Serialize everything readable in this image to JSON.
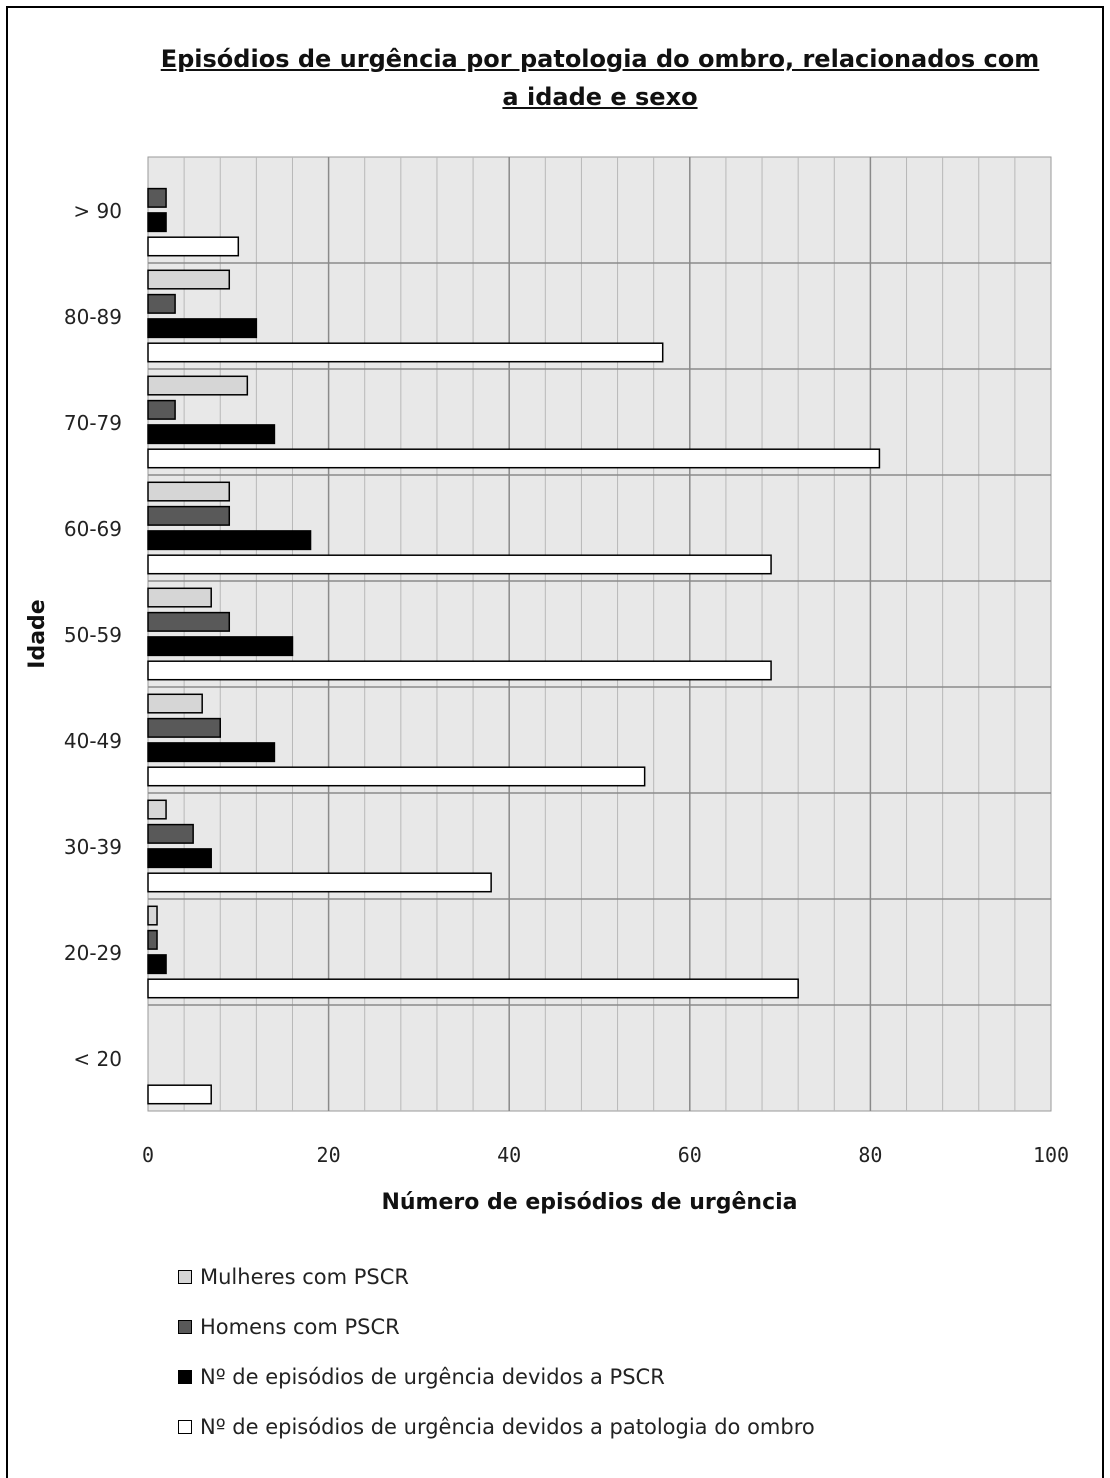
{
  "chart_data": {
    "type": "bar",
    "orientation": "horizontal",
    "title": "Episódios de urgência por patologia do ombro, relacionados com a idade e sexo",
    "xlabel": "Número de episódios de urgência",
    "ylabel": "Idade",
    "xlim": [
      0,
      100
    ],
    "x_ticks": [
      "0",
      "20",
      "40",
      "60",
      "80",
      "100"
    ],
    "grid": true,
    "legend_position": "bottom",
    "categories": [
      "> 90",
      "80-89",
      "70-79",
      "60-69",
      "50-59",
      "40-49",
      "30-39",
      "20-29",
      "< 20"
    ],
    "series": [
      {
        "name": "Mulheres com PSCR",
        "color": "#d6d6d6",
        "values": [
          0,
          9,
          11,
          9,
          7,
          6,
          2,
          1,
          0
        ]
      },
      {
        "name": "Homens com PSCR",
        "color": "#595959",
        "values": [
          2,
          3,
          3,
          9,
          9,
          8,
          5,
          1,
          0
        ]
      },
      {
        "name": "Nº de episódios de urgência devidos a PSCR",
        "color": "#000000",
        "values": [
          2,
          12,
          14,
          18,
          16,
          14,
          7,
          2,
          0
        ]
      },
      {
        "name": "Nº de episódios de urgência devidos a patologia do ombro",
        "color": "#ffffff",
        "values": [
          10,
          57,
          81,
          69,
          69,
          55,
          38,
          72,
          7
        ]
      }
    ]
  }
}
